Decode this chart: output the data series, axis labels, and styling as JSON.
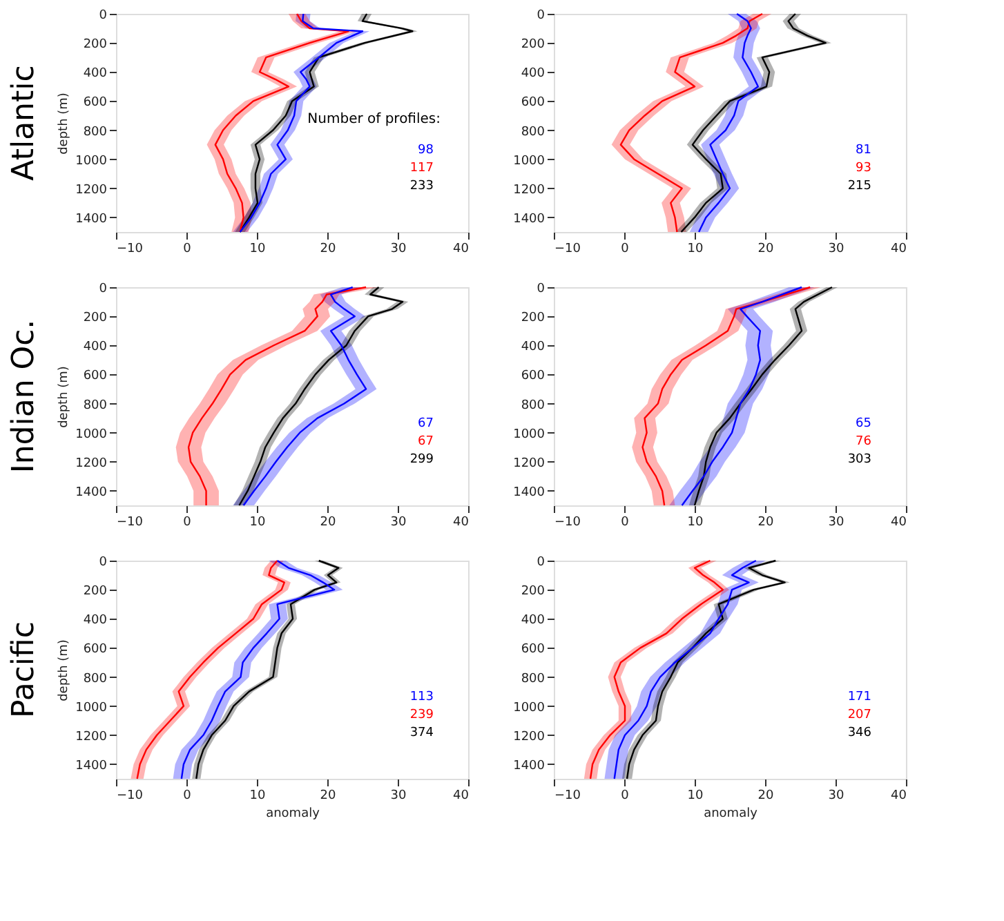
{
  "chart_data": [
    {
      "type": "line",
      "orientation": "horizontal",
      "title": "Atlantic",
      "ylabel": "depth (m)",
      "xlim": [
        -10,
        40
      ],
      "xticks": [
        -10,
        0,
        10,
        20,
        30,
        40
      ],
      "ylim": [
        1500,
        0
      ],
      "yticks": [
        0,
        200,
        400,
        600,
        800,
        1000,
        1200,
        1400
      ],
      "grid": false,
      "legend": "bottom right",
      "legend_title": "Number of profiles:",
      "series": [
        {
          "name": "98",
          "color": "#0000ff",
          "x": [
            0,
            50,
            100,
            120,
            200,
            300,
            400,
            450,
            500,
            600,
            700,
            800,
            900,
            1000,
            1100,
            1200,
            1300,
            1400,
            1500
          ],
          "values": [
            16.6,
            16.5,
            18,
            25,
            21.3,
            18.8,
            16.2,
            17,
            17.5,
            15.6,
            15.3,
            14.4,
            12.9,
            14.1,
            12,
            11.3,
            10.4,
            9.2,
            7.6
          ],
          "lower": [
            15.6,
            15.5,
            17,
            24,
            20.3,
            17.8,
            15.2,
            16,
            16.5,
            14.6,
            14.3,
            13.4,
            11.9,
            13.1,
            11,
            10.3,
            9.4,
            8.2,
            6.6
          ],
          "upper": [
            17.6,
            17.5,
            19,
            26,
            22.3,
            19.8,
            17.2,
            18,
            18.5,
            16.6,
            16.3,
            15.4,
            13.9,
            15.1,
            13,
            12.3,
            11.4,
            10.2,
            8.6
          ]
        },
        {
          "name": "117",
          "color": "#ff0000",
          "x": [
            0,
            50,
            100,
            120,
            200,
            300,
            400,
            450,
            500,
            600,
            700,
            800,
            900,
            1000,
            1100,
            1200,
            1300,
            1400,
            1500
          ],
          "values": [
            15.7,
            16.3,
            17.5,
            23,
            17.5,
            11.3,
            10.4,
            12.6,
            14.5,
            9.5,
            7,
            5.2,
            4.1,
            5.2,
            5.8,
            7,
            7.9,
            8.1,
            7.6
          ],
          "lower": [
            14.5,
            15.1,
            16.3,
            21.8,
            16.3,
            10.1,
            9.2,
            11.4,
            13.3,
            8.3,
            5.8,
            4,
            2.9,
            4,
            4.6,
            5.8,
            6.7,
            6.9,
            6.4
          ],
          "upper": [
            16.9,
            17.5,
            18.7,
            24.2,
            18.7,
            12.5,
            11.6,
            13.8,
            15.7,
            10.7,
            8.2,
            6.4,
            5.3,
            6.4,
            7,
            8.2,
            9.1,
            9.3,
            8.8
          ]
        },
        {
          "name": "233",
          "color": "#000000",
          "x": [
            0,
            50,
            100,
            120,
            200,
            300,
            400,
            450,
            500,
            600,
            700,
            800,
            900,
            1000,
            1100,
            1200,
            1300,
            1400,
            1500
          ],
          "values": [
            25.6,
            25,
            30.6,
            32.1,
            25.3,
            18.8,
            17.5,
            17.8,
            18.1,
            15,
            14.1,
            12.3,
            9.8,
            10.4,
            9.8,
            9.8,
            10.1,
            8.9,
            7.6
          ],
          "lower": [
            24.9,
            24.3,
            29.9,
            31.4,
            24.6,
            18.1,
            16.8,
            17.1,
            17.4,
            14.3,
            13.4,
            11.6,
            9.1,
            9.7,
            9.1,
            9.1,
            9.4,
            8.2,
            6.9
          ],
          "upper": [
            26.3,
            25.7,
            31.3,
            32.8,
            26,
            19.5,
            18.2,
            18.5,
            18.8,
            15.7,
            14.8,
            13,
            10.5,
            11.1,
            10.5,
            10.5,
            10.8,
            9.6,
            8.3
          ]
        }
      ]
    },
    {
      "type": "line",
      "orientation": "horizontal",
      "xlim": [
        -10,
        40
      ],
      "xticks": [
        -10,
        0,
        10,
        20,
        30,
        40
      ],
      "ylim": [
        1500,
        0
      ],
      "yticks": [
        0,
        200,
        400,
        600,
        800,
        1000,
        1200,
        1400
      ],
      "grid": false,
      "legend": "bottom right",
      "series": [
        {
          "name": "81",
          "color": "#0000ff",
          "x": [
            0,
            50,
            100,
            150,
            200,
            300,
            400,
            500,
            600,
            700,
            800,
            900,
            1000,
            1100,
            1200,
            1300,
            1400,
            1500
          ],
          "values": [
            16,
            17.5,
            18,
            17.5,
            17.1,
            16.8,
            18,
            19,
            16.2,
            15.6,
            14.4,
            12.2,
            13.1,
            14,
            15,
            13.4,
            11.6,
            10.6
          ],
          "lower": [
            14.7,
            16.2,
            16.7,
            16.2,
            15.8,
            15.5,
            16.7,
            17.7,
            14.9,
            14.3,
            13.1,
            10.9,
            11.8,
            12.7,
            13.7,
            12.1,
            10.3,
            9.3
          ],
          "upper": [
            17.3,
            18.8,
            19.3,
            18.8,
            18.4,
            18.1,
            19.3,
            20.3,
            17.5,
            16.9,
            15.7,
            13.5,
            14.4,
            15.3,
            16.3,
            14.7,
            12.9,
            11.9
          ]
        },
        {
          "name": "93",
          "color": "#ff0000",
          "x": [
            0,
            50,
            100,
            150,
            200,
            300,
            400,
            500,
            600,
            700,
            800,
            900,
            1000,
            1100,
            1200,
            1300,
            1400,
            1500
          ],
          "values": [
            19.6,
            17.8,
            17.5,
            15.9,
            14,
            7.9,
            7.2,
            10,
            5.4,
            2.9,
            0.7,
            -0.5,
            1.4,
            4.8,
            8.2,
            6.6,
            7.2,
            7.5
          ],
          "lower": [
            18.3,
            16.5,
            16.2,
            14.6,
            12.7,
            6.6,
            5.9,
            8.7,
            4.1,
            1.6,
            -0.6,
            -1.8,
            0.1,
            3.5,
            6.9,
            5.3,
            5.9,
            6.2
          ],
          "upper": [
            20.9,
            19.1,
            18.8,
            17.2,
            15.3,
            9.2,
            8.5,
            11.3,
            6.7,
            4.2,
            2,
            0.8,
            2.7,
            6.1,
            9.5,
            7.9,
            8.5,
            8.8
          ]
        },
        {
          "name": "215",
          "color": "#000000",
          "x": [
            0,
            50,
            100,
            150,
            200,
            300,
            400,
            500,
            600,
            700,
            800,
            900,
            1000,
            1100,
            1200,
            1300,
            1400,
            1500
          ],
          "values": [
            24.3,
            23.3,
            24,
            26,
            28.6,
            19.6,
            20.6,
            20.2,
            15,
            13.1,
            11.2,
            9.7,
            11.6,
            13.7,
            14,
            11.6,
            10,
            8.1
          ],
          "lower": [
            23.5,
            22.5,
            23.2,
            25.2,
            27.8,
            18.8,
            19.8,
            19.4,
            14.2,
            12.3,
            10.4,
            8.9,
            10.8,
            12.9,
            13.2,
            10.8,
            9.2,
            7.3
          ],
          "upper": [
            25.1,
            24.1,
            24.8,
            26.8,
            29.4,
            20.4,
            21.4,
            21,
            15.8,
            13.9,
            12,
            10.5,
            12.4,
            14.5,
            14.8,
            12.4,
            10.8,
            8.9
          ]
        }
      ]
    },
    {
      "type": "line",
      "orientation": "horizontal",
      "title": "Indian Oc.",
      "ylabel": "depth (m)",
      "xlim": [
        -10,
        40
      ],
      "xticks": [
        -10,
        0,
        10,
        20,
        30,
        40
      ],
      "ylim": [
        1500,
        0
      ],
      "yticks": [
        0,
        200,
        400,
        600,
        800,
        1000,
        1200,
        1400
      ],
      "grid": false,
      "legend": "bottom right",
      "series": [
        {
          "name": "67",
          "color": "#0000ff",
          "x": [
            0,
            50,
            100,
            150,
            200,
            300,
            400,
            500,
            600,
            700,
            800,
            900,
            1000,
            1100,
            1200,
            1300,
            1400,
            1500
          ],
          "values": [
            23.6,
            20.5,
            21.1,
            22.4,
            23.9,
            20.5,
            22,
            23,
            24.2,
            25.5,
            22.4,
            18.6,
            16.1,
            14.3,
            12.7,
            11.2,
            9.6,
            8.1
          ],
          "lower": [
            22.1,
            19,
            19.6,
            20.9,
            22.4,
            19,
            20.5,
            21.5,
            22.7,
            24,
            20.9,
            17.1,
            14.6,
            12.8,
            11.2,
            9.7,
            8.1,
            6.6
          ],
          "upper": [
            25.1,
            22,
            22.6,
            23.9,
            25.4,
            22,
            23.5,
            24.5,
            25.7,
            27,
            23.9,
            20.1,
            17.6,
            15.8,
            14.2,
            12.7,
            11.1,
            9.6
          ]
        },
        {
          "name": "67",
          "color": "#ff0000",
          "x": [
            0,
            50,
            100,
            150,
            200,
            300,
            400,
            500,
            600,
            700,
            800,
            900,
            1000,
            1100,
            1200,
            1300,
            1400,
            1500
          ],
          "values": [
            25.5,
            19.9,
            19.3,
            18.3,
            18.6,
            16.8,
            12.4,
            8.4,
            6.2,
            5,
            3.7,
            2.2,
            0.9,
            0.3,
            0.6,
            1.9,
            2.8,
            2.8
          ],
          "lower": [
            23.7,
            18.1,
            17.5,
            16.5,
            16.8,
            15,
            10.6,
            6.6,
            4.4,
            3.2,
            1.9,
            0.4,
            -0.9,
            -1.5,
            -1.2,
            0.1,
            1,
            1
          ],
          "upper": [
            27.3,
            21.7,
            21.1,
            20.1,
            20.4,
            18.6,
            14.2,
            10.2,
            8,
            6.8,
            5.5,
            4,
            2.7,
            2.1,
            2.4,
            3.7,
            4.6,
            4.6
          ]
        },
        {
          "name": "299",
          "color": "#000000",
          "x": [
            0,
            50,
            100,
            150,
            200,
            300,
            400,
            500,
            600,
            700,
            800,
            900,
            1000,
            1100,
            1200,
            1300,
            1400,
            1500
          ],
          "values": [
            27.3,
            26.1,
            30.7,
            29.2,
            25.8,
            23.9,
            22.7,
            20.2,
            18.3,
            16.8,
            15.5,
            13.7,
            12.4,
            11.2,
            10.5,
            9.6,
            8.7,
            7.5
          ],
          "lower": [
            26.5,
            25.3,
            29.9,
            28.4,
            25,
            23.1,
            21.9,
            19.4,
            17.5,
            16,
            14.7,
            12.9,
            11.6,
            10.4,
            9.7,
            8.8,
            7.9,
            6.7
          ],
          "upper": [
            28.1,
            26.9,
            31.5,
            30,
            26.6,
            24.7,
            23.5,
            21,
            19.1,
            17.6,
            16.3,
            14.5,
            13.2,
            12,
            11.3,
            10.4,
            9.5,
            8.3
          ]
        }
      ]
    },
    {
      "type": "line",
      "orientation": "horizontal",
      "xlim": [
        -10,
        40
      ],
      "xticks": [
        -10,
        0,
        10,
        20,
        30,
        40
      ],
      "ylim": [
        1500,
        0
      ],
      "yticks": [
        0,
        200,
        400,
        600,
        800,
        1000,
        1200,
        1400
      ],
      "grid": false,
      "legend": "bottom right",
      "series": [
        {
          "name": "65",
          "color": "#0000ff",
          "x": [
            0,
            100,
            150,
            200,
            300,
            400,
            500,
            600,
            700,
            800,
            900,
            1000,
            1100,
            1200,
            1300,
            1400,
            1500
          ],
          "values": [
            25.2,
            19.6,
            16.5,
            17.4,
            19.3,
            19,
            19.3,
            18.7,
            17.8,
            16.5,
            15.9,
            15.3,
            14,
            12.5,
            11.3,
            9.7,
            8.2
          ],
          "lower": [
            23.4,
            17.8,
            14.7,
            15.6,
            17.5,
            17.2,
            17.5,
            16.9,
            16,
            14.7,
            14.1,
            13.5,
            12.2,
            10.7,
            9.5,
            7.9,
            6.4
          ],
          "upper": [
            27,
            21.4,
            18.3,
            19.2,
            21.1,
            20.8,
            21.1,
            20.5,
            19.6,
            18.3,
            17.7,
            17.1,
            15.8,
            14.3,
            13.1,
            11.5,
            10
          ]
        },
        {
          "name": "76",
          "color": "#ff0000",
          "x": [
            0,
            100,
            150,
            200,
            300,
            400,
            500,
            600,
            700,
            800,
            900,
            1000,
            1100,
            1200,
            1300,
            1400,
            1500
          ],
          "values": [
            26.4,
            19.6,
            15.9,
            15.6,
            14.7,
            11.6,
            8.2,
            6.6,
            5.4,
            4.8,
            2.9,
            3.2,
            2.6,
            3.2,
            4.5,
            5.4,
            5.7
          ],
          "lower": [
            24.9,
            18.1,
            14.4,
            14.1,
            13.2,
            10.1,
            6.7,
            5.1,
            3.9,
            3.3,
            1.4,
            1.7,
            1.1,
            1.7,
            3,
            3.9,
            4.2
          ],
          "upper": [
            27.9,
            21.1,
            17.4,
            17.1,
            16.2,
            13.1,
            9.7,
            8.1,
            6.9,
            6.3,
            4.4,
            4.7,
            4.1,
            4.7,
            6,
            6.9,
            7.2
          ]
        },
        {
          "name": "303",
          "color": "#000000",
          "x": [
            0,
            100,
            150,
            200,
            300,
            400,
            500,
            600,
            700,
            800,
            900,
            1000,
            1100,
            1200,
            1300,
            1400,
            1500
          ],
          "values": [
            29.5,
            25.5,
            24.3,
            24.6,
            25.2,
            23.4,
            21.4,
            19.6,
            18.1,
            16.5,
            15,
            13.1,
            12.2,
            11.6,
            11.3,
            10.6,
            10
          ],
          "lower": [
            28.7,
            24.7,
            23.5,
            23.8,
            24.4,
            22.6,
            20.6,
            18.8,
            17.3,
            15.7,
            14.2,
            12.3,
            11.4,
            10.8,
            10.5,
            9.8,
            9.2
          ],
          "upper": [
            30.3,
            26.3,
            25.1,
            25.4,
            26,
            24.2,
            22.2,
            20.4,
            18.9,
            17.3,
            15.8,
            13.9,
            13,
            12.4,
            12.1,
            11.4,
            10.8
          ]
        }
      ]
    },
    {
      "type": "line",
      "orientation": "horizontal",
      "title": "Pacific",
      "ylabel": "depth (m)",
      "xlabel": "anomaly",
      "xlim": [
        -10,
        40
      ],
      "xticks": [
        -10,
        0,
        10,
        20,
        30,
        40
      ],
      "ylim": [
        1500,
        0
      ],
      "yticks": [
        0,
        200,
        400,
        600,
        800,
        1000,
        1200,
        1400
      ],
      "grid": false,
      "legend": "bottom right",
      "series": [
        {
          "name": "113",
          "color": "#0000ff",
          "x": [
            0,
            50,
            100,
            150,
            200,
            300,
            400,
            500,
            600,
            700,
            800,
            900,
            1000,
            1100,
            1200,
            1300,
            1400,
            1500
          ],
          "values": [
            12.9,
            14.5,
            17.6,
            19.4,
            21,
            12.9,
            13.2,
            11.4,
            9.5,
            8,
            7.7,
            5.5,
            4.5,
            3.6,
            2.4,
            0.5,
            -0.4,
            -0.7
          ],
          "lower": [
            11.7,
            13.3,
            16.4,
            18.2,
            19.8,
            11.7,
            12,
            10.2,
            8.3,
            6.8,
            6.5,
            4.3,
            3.3,
            2.4,
            1.2,
            -0.7,
            -1.6,
            -1.9
          ],
          "upper": [
            14.1,
            15.7,
            18.8,
            20.6,
            22.2,
            14.1,
            14.4,
            12.6,
            10.7,
            9.2,
            8.9,
            6.7,
            5.7,
            4.8,
            3.6,
            1.7,
            0.8,
            0.5
          ]
        },
        {
          "name": "239",
          "color": "#ff0000",
          "x": [
            0,
            50,
            100,
            150,
            200,
            300,
            400,
            500,
            600,
            700,
            800,
            900,
            1000,
            1100,
            1200,
            1300,
            1400,
            1500
          ],
          "values": [
            12.9,
            12,
            11.7,
            13.9,
            13.5,
            10.7,
            9.5,
            7,
            4.5,
            2.4,
            0.5,
            -1.1,
            -0.4,
            -2.3,
            -4.2,
            -5.7,
            -6.6,
            -7
          ],
          "lower": [
            12,
            11.1,
            10.8,
            13,
            12.6,
            9.8,
            8.6,
            6.1,
            3.6,
            1.5,
            -0.4,
            -2,
            -1.3,
            -3.2,
            -5.1,
            -6.6,
            -7.5,
            -7.9
          ],
          "upper": [
            13.8,
            12.9,
            12.6,
            14.8,
            14.4,
            11.6,
            10.4,
            7.9,
            5.4,
            3.3,
            1.4,
            -0.2,
            0.5,
            -1.4,
            -3.3,
            -4.8,
            -5.7,
            -6.1
          ]
        },
        {
          "name": "374",
          "color": "#000000",
          "x": [
            0,
            50,
            100,
            150,
            200,
            300,
            400,
            500,
            600,
            700,
            800,
            900,
            1000,
            1100,
            1200,
            1300,
            1400,
            1500
          ],
          "values": [
            18.8,
            21.6,
            20.1,
            21.3,
            18.2,
            14.8,
            15.1,
            13.5,
            12.9,
            12.6,
            12.3,
            8.9,
            6.7,
            5.5,
            3.6,
            2.4,
            1.7,
            1.4
          ],
          "lower": [
            18.2,
            21,
            19.5,
            20.7,
            17.6,
            14.2,
            14.5,
            12.9,
            12.3,
            12,
            11.7,
            8.3,
            6.1,
            4.9,
            3,
            1.8,
            1.1,
            0.8
          ],
          "upper": [
            19.4,
            22.2,
            20.7,
            21.9,
            18.8,
            15.4,
            15.7,
            14.1,
            13.5,
            13.2,
            12.9,
            9.5,
            7.3,
            6.1,
            4.2,
            3,
            2.3,
            2
          ]
        }
      ]
    },
    {
      "type": "line",
      "orientation": "horizontal",
      "xlabel": "anomaly",
      "xlim": [
        -10,
        40
      ],
      "xticks": [
        -10,
        0,
        10,
        20,
        30,
        40
      ],
      "ylim": [
        1500,
        0
      ],
      "yticks": [
        0,
        200,
        400,
        600,
        800,
        1000,
        1200,
        1400
      ],
      "grid": false,
      "legend": "bottom right",
      "series": [
        {
          "name": "171",
          "color": "#0000ff",
          "x": [
            0,
            50,
            100,
            150,
            200,
            300,
            400,
            500,
            600,
            700,
            800,
            900,
            1000,
            1100,
            1200,
            1300,
            1400,
            1500
          ],
          "values": [
            18.7,
            16.8,
            15.3,
            17.7,
            15.3,
            14.7,
            13.4,
            12.2,
            9.7,
            7.2,
            5.1,
            3.8,
            3.2,
            2,
            0.1,
            -0.8,
            -1.1,
            -1.4
          ],
          "lower": [
            17.3,
            15.4,
            13.9,
            16.3,
            13.9,
            13.3,
            12,
            10.8,
            8.3,
            5.8,
            3.7,
            2.4,
            1.8,
            0.6,
            -1.3,
            -2.2,
            -2.5,
            -2.8
          ],
          "upper": [
            20.1,
            18.2,
            16.7,
            19.1,
            16.7,
            16.1,
            14.8,
            13.6,
            11.1,
            8.6,
            6.5,
            5.2,
            4.6,
            3.4,
            1.5,
            0.6,
            0.3,
            0
          ]
        },
        {
          "name": "207",
          "color": "#ff0000",
          "x": [
            0,
            50,
            100,
            150,
            200,
            300,
            400,
            500,
            600,
            700,
            800,
            900,
            1000,
            1100,
            1200,
            1300,
            1400,
            1500
          ],
          "values": [
            12.2,
            10,
            11.2,
            12.8,
            14,
            10.9,
            8.2,
            6,
            2.3,
            -0.5,
            -1.4,
            -0.8,
            0.1,
            0.1,
            -2,
            -3.6,
            -4.5,
            -4.8
          ],
          "lower": [
            11.3,
            9.1,
            10.3,
            11.9,
            13.1,
            10,
            7.3,
            5.1,
            1.4,
            -1.4,
            -2.3,
            -1.7,
            -0.8,
            -0.8,
            -2.9,
            -4.5,
            -5.4,
            -5.7
          ],
          "upper": [
            13.1,
            10.9,
            12.1,
            13.7,
            14.9,
            11.8,
            9.1,
            6.9,
            3.2,
            0.4,
            -0.5,
            0.1,
            1,
            1,
            -1.1,
            -2.7,
            -3.6,
            -3.9
          ]
        },
        {
          "name": "346",
          "color": "#000000",
          "x": [
            0,
            50,
            100,
            150,
            200,
            300,
            400,
            500,
            600,
            700,
            800,
            900,
            1000,
            1100,
            1200,
            1300,
            1400,
            1500
          ],
          "values": [
            21.5,
            17.7,
            19.6,
            22.8,
            18.4,
            13.4,
            14,
            11.6,
            9.7,
            7.6,
            6.6,
            5.4,
            4.8,
            4.5,
            2.6,
            1.4,
            0.7,
            0.4
          ],
          "lower": [
            20.8,
            17,
            18.9,
            22.1,
            17.7,
            12.7,
            13.3,
            10.9,
            9,
            6.9,
            5.9,
            4.7,
            4.1,
            3.8,
            1.9,
            0.7,
            0,
            -0.3
          ],
          "upper": [
            22.2,
            18.4,
            20.3,
            23.5,
            19.1,
            14.1,
            14.7,
            12.3,
            10.4,
            8.3,
            7.3,
            6.1,
            5.5,
            5.2,
            3.3,
            2.1,
            1.4,
            1.1
          ]
        }
      ]
    }
  ]
}
